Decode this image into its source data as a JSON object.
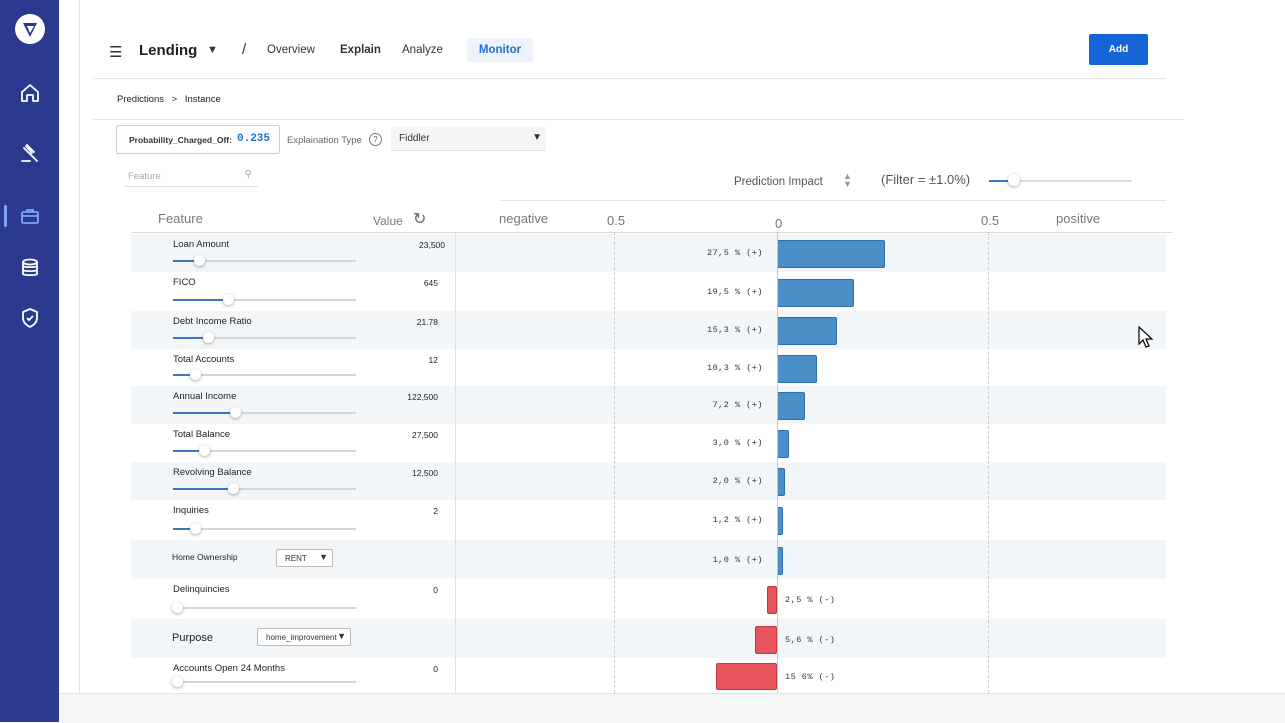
{
  "header": {
    "title": "Lending",
    "separator": "/",
    "tabs": [
      {
        "label": "Overview",
        "active": false
      },
      {
        "label": "Explain",
        "active": false
      },
      {
        "label": "Analyze",
        "active": false
      },
      {
        "label": "Monitor",
        "active": true
      }
    ],
    "add_label": "Add"
  },
  "breadcrumb": {
    "parent": "Predictions",
    "sep": ">",
    "current": "Instance"
  },
  "prediction": {
    "label": "Probability_Charged_Off:",
    "value": "0.235"
  },
  "explanation": {
    "label": "Explaination Type",
    "help": "?",
    "selected": "Fiddler"
  },
  "search": {
    "placeholder": "Feature"
  },
  "impact": {
    "label": "Prediction Impact",
    "filter_label": "(Filter = ±1.0%)",
    "filter_level_fraction": 0.17
  },
  "columns": {
    "feature": "Feature",
    "value": "Value",
    "negative": "negative",
    "positive": "positive",
    "tick_left": "0.5",
    "tick_zero": "0",
    "tick_right": "0.5"
  },
  "rows": [
    {
      "name": "Loan Amount",
      "value": "23,500",
      "control": "slider",
      "level": 0.14,
      "impact": 27.5,
      "impact_label": "27,5 % (+)",
      "sign": "+"
    },
    {
      "name": "FICO",
      "value": "645",
      "control": "slider",
      "level": 0.3,
      "impact": 19.5,
      "impact_label": "19,5 % (+)",
      "sign": "+"
    },
    {
      "name": "Debt Income Ratio",
      "value": "21.78",
      "control": "slider",
      "level": 0.19,
      "impact": 15.3,
      "impact_label": "15,3 % (+)",
      "sign": "+"
    },
    {
      "name": "Total Accounts",
      "value": "12",
      "control": "slider",
      "level": 0.12,
      "impact": 10.3,
      "impact_label": "10,3 % (+)",
      "sign": "+"
    },
    {
      "name": "Annual Income",
      "value": "122,500",
      "control": "slider",
      "level": 0.34,
      "impact": 7.2,
      "impact_label": "7,2 % (+)",
      "sign": "+"
    },
    {
      "name": "Total Balance",
      "value": "27,500",
      "control": "slider",
      "level": 0.17,
      "impact": 3.0,
      "impact_label": "3,0 % (+)",
      "sign": "+"
    },
    {
      "name": "Revolving Balance",
      "value": "12,500",
      "control": "slider",
      "level": 0.33,
      "impact": 2.0,
      "impact_label": "2,0 % (+)",
      "sign": "+"
    },
    {
      "name": "Inquiries",
      "value": "2",
      "control": "slider",
      "level": 0.12,
      "impact": 1.2,
      "impact_label": "1,2 % (+)",
      "sign": "+"
    },
    {
      "name": "Home Ownership",
      "value": "RENT",
      "control": "dropdown",
      "impact": 1.0,
      "impact_label": "1,0 % (+)",
      "sign": "+"
    },
    {
      "name": "Delinquincies",
      "value": "0",
      "control": "slider",
      "level": 0.02,
      "impact": -2.5,
      "impact_label": "2,5 % (-)",
      "sign": "-"
    },
    {
      "name": "Purpose",
      "value": "home_improvement",
      "control": "dropdown",
      "impact": -5.6,
      "impact_label": "5,6 % (-)",
      "sign": "-"
    },
    {
      "name": "Accounts Open 24 Months",
      "value": "0",
      "control": "slider",
      "level": 0.02,
      "impact": -15.6,
      "impact_label": "15 6% (-)",
      "sign": "-"
    }
  ],
  "colors": {
    "sidebar": "#2b3a8f",
    "accent": "#1565d8",
    "positive_bar": "#4a8fc8",
    "negative_bar": "#e8555a"
  },
  "icons": {
    "sidebar": [
      "logo-icon",
      "home-icon",
      "gavel-icon",
      "briefcase-icon",
      "database-icon",
      "shield-icon"
    ]
  }
}
